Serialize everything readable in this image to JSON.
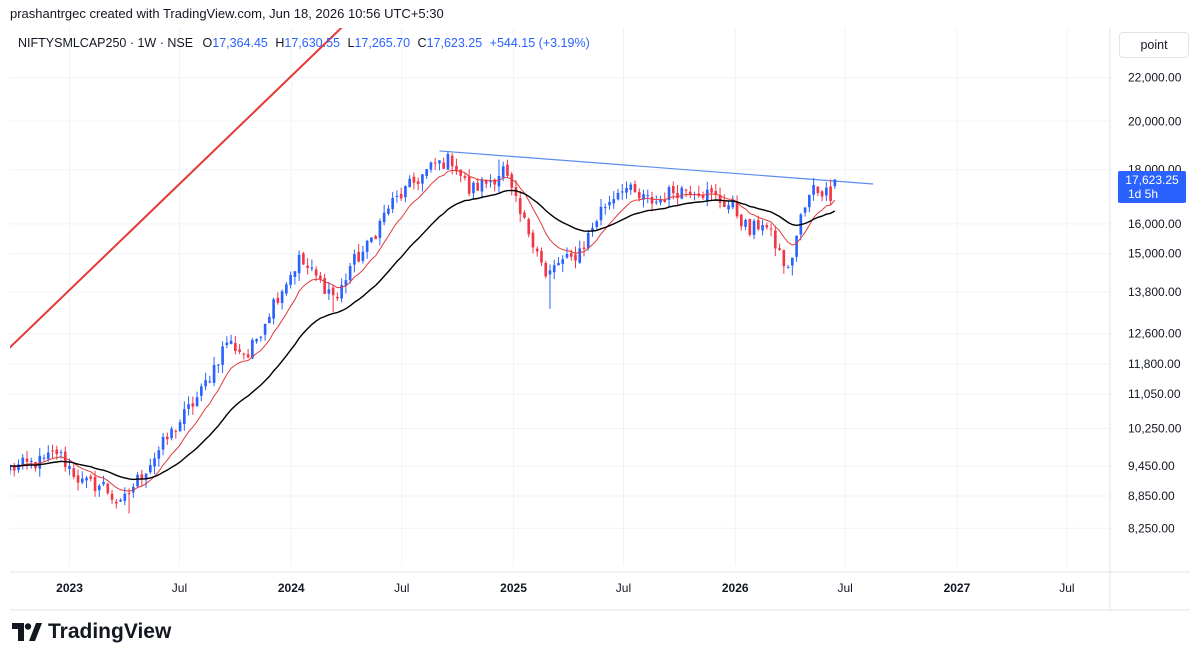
{
  "header": {
    "attribution": "prashantrgec created with TradingView.com, Jun 18, 2026 10:56 UTC+5:30"
  },
  "legend": {
    "symbol": "NIFTYSMLCAP250 · 1W · NSE",
    "open_label": "O",
    "open": "17,364.45",
    "high_label": "H",
    "high": "17,630.55",
    "low_label": "L",
    "low": "17,265.70",
    "close_label": "C",
    "close": "17,623.25",
    "change": "+544.15 (+3.19%)"
  },
  "price_scale": {
    "unit": "point",
    "last_price": "17,623.25",
    "countdown": "1d 5h"
  },
  "brand": {
    "name": "TradingView"
  },
  "colors": {
    "up": "#2962ff",
    "down": "#f23645",
    "ema_short": "#e03a3a",
    "ema_long": "#000000",
    "trend_line": "#e53935",
    "resistance_line": "#5b8def",
    "label_bg": "#2962ff"
  },
  "chart_data": {
    "type": "candlestick",
    "title": "",
    "y_scale": "log",
    "ylim": [
      7600,
      24500
    ],
    "y_ticks": [
      {
        "value": 22000,
        "label": "22,000.00"
      },
      {
        "value": 20000,
        "label": "20,000.00"
      },
      {
        "value": 18000,
        "label": "18,000.00"
      },
      {
        "value": 16000,
        "label": "16,000.00"
      },
      {
        "value": 15000,
        "label": "15,000.00"
      },
      {
        "value": 13800,
        "label": "13,800.00"
      },
      {
        "value": 12600,
        "label": "12,600.00"
      },
      {
        "value": 11800,
        "label": "11,800.00"
      },
      {
        "value": 11050,
        "label": "11,050.00"
      },
      {
        "value": 10250,
        "label": "10,250.00"
      },
      {
        "value": 9450,
        "label": "9,450.00"
      },
      {
        "value": 8850,
        "label": "8,850.00"
      },
      {
        "value": 8250,
        "label": "8,250.00"
      }
    ],
    "x_ticks": [
      {
        "date": "2023-01-01",
        "label": "2023",
        "bold": true
      },
      {
        "date": "2023-07-01",
        "label": "Jul",
        "bold": false
      },
      {
        "date": "2024-01-01",
        "label": "2024",
        "bold": true
      },
      {
        "date": "2024-07-01",
        "label": "Jul",
        "bold": false
      },
      {
        "date": "2025-01-01",
        "label": "2025",
        "bold": true
      },
      {
        "date": "2025-07-01",
        "label": "Jul",
        "bold": false
      },
      {
        "date": "2026-01-01",
        "label": "2026",
        "bold": true
      },
      {
        "date": "2026-07-01",
        "label": "Jul",
        "bold": false
      },
      {
        "date": "2027-01-01",
        "label": "2027",
        "bold": true
      },
      {
        "date": "2027-07-01",
        "label": "Jul",
        "bold": false
      }
    ],
    "xlim": [
      "2022-09-25",
      "2027-09-10"
    ],
    "close_anchors": [
      [
        "2022-09-25",
        9400
      ],
      [
        "2022-11-20",
        9550
      ],
      [
        "2022-12-11",
        9750
      ],
      [
        "2023-01-22",
        9100
      ],
      [
        "2023-02-26",
        9050
      ],
      [
        "2023-03-26",
        8650
      ],
      [
        "2023-04-16",
        9050
      ],
      [
        "2023-06-04",
        9900
      ],
      [
        "2023-08-06",
        11100
      ],
      [
        "2023-09-17",
        12400
      ],
      [
        "2023-10-22",
        12000
      ],
      [
        "2023-12-03",
        13500
      ],
      [
        "2024-01-14",
        14800
      ],
      [
        "2024-02-18",
        14100
      ],
      [
        "2024-03-17",
        13600
      ],
      [
        "2024-04-07",
        14600
      ],
      [
        "2024-05-05",
        15200
      ],
      [
        "2024-06-09",
        16600
      ],
      [
        "2024-07-21",
        17500
      ],
      [
        "2024-08-25",
        18200
      ],
      [
        "2024-09-22",
        18400
      ],
      [
        "2024-10-20",
        17200
      ],
      [
        "2024-11-24",
        17600
      ],
      [
        "2024-12-15",
        18000
      ],
      [
        "2025-01-12",
        16300
      ],
      [
        "2025-02-09",
        15200
      ],
      [
        "2025-02-23",
        14200
      ],
      [
        "2025-03-16",
        14700
      ],
      [
        "2025-04-06",
        14800
      ],
      [
        "2025-04-27",
        15300
      ],
      [
        "2025-05-25",
        16500
      ],
      [
        "2025-06-29",
        17400
      ],
      [
        "2025-07-27",
        16900
      ],
      [
        "2025-08-24",
        16800
      ],
      [
        "2025-09-21",
        17200
      ],
      [
        "2025-10-26",
        17300
      ],
      [
        "2025-11-23",
        17000
      ],
      [
        "2025-12-28",
        16600
      ],
      [
        "2026-01-25",
        15700
      ],
      [
        "2026-02-15",
        16100
      ],
      [
        "2026-03-08",
        15300
      ],
      [
        "2026-03-29",
        14400
      ],
      [
        "2026-04-19",
        16200
      ],
      [
        "2026-05-10",
        17300
      ],
      [
        "2026-06-07",
        17100
      ],
      [
        "2026-06-14",
        17623.25
      ]
    ],
    "last_candle": {
      "date": "2026-06-14",
      "open": 17364.45,
      "high": 17630.55,
      "low": 17265.7,
      "close": 17623.25
    },
    "notable_lows": [
      [
        "2023-04-09",
        8520
      ],
      [
        "2024-03-10",
        13200
      ],
      [
        "2025-03-02",
        13300
      ],
      [
        "2026-04-05",
        14300
      ]
    ],
    "notable_highs": [
      [
        "2024-09-15",
        18650
      ],
      [
        "2024-12-08",
        18400
      ]
    ],
    "moving_averages": [
      {
        "period": 10,
        "color": "#e03a3a"
      },
      {
        "period": 30,
        "color": "#000000"
      }
    ],
    "trendlines": [
      {
        "role": "rising support-turned-resistance",
        "color": "#e53935",
        "from": [
          "2022-09-18",
          12120
        ],
        "to": [
          "2025-03-23",
          39000
        ]
      },
      {
        "role": "descending resistance",
        "color": "#5b8def",
        "from": [
          "2024-09-01",
          18750
        ],
        "to": [
          "2026-08-16",
          17450
        ]
      }
    ]
  }
}
